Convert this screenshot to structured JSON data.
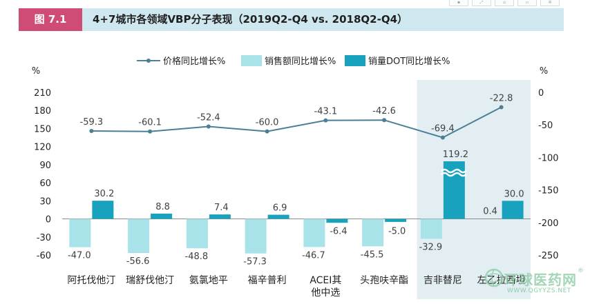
{
  "header": {
    "figure_label": "图 7.1",
    "title": "4+7城市各领域VBP分子表现（2019Q2-Q4 vs. 2018Q2-Q4）"
  },
  "colors": {
    "header_bg": "#cfe7ef",
    "label_bg": "#cf4d75",
    "bar_light": "#a8e3ea",
    "bar_dark": "#19a2bd",
    "line": "#4a7f95",
    "highlight": "#e3eef3",
    "axis_text": "#222222",
    "value_text": "#404040"
  },
  "chart_data": {
    "type": "bar",
    "title": "4+7城市各领域VBP分子表现（2019Q2-Q4 vs. 2018Q2-Q4）",
    "left_axis_unit": "%",
    "right_axis_unit": "%",
    "ylim_left": [
      -60,
      210
    ],
    "yticks_left": [
      "210",
      "180",
      "150",
      "120",
      "90",
      "60",
      "30",
      "0",
      "-30",
      "-60"
    ],
    "ylim_right": [
      -250,
      0
    ],
    "yticks_right": [
      "0",
      "-50",
      "-100",
      "-150",
      "-200",
      "-250"
    ],
    "categories": [
      "阿托伐他汀",
      "瑞舒伐他汀",
      "氨氯地平",
      "福辛普利",
      "ACEI其他中选",
      "头孢呋辛酯",
      "吉非替尼",
      "左乙拉西坦"
    ],
    "category_lines": [
      [
        "阿托伐他汀"
      ],
      [
        "瑞舒伐他汀"
      ],
      [
        "氨氯地平"
      ],
      [
        "福辛普利"
      ],
      [
        "ACEI其",
        "他中选"
      ],
      [
        "头孢呋辛酯"
      ],
      [
        "吉非替尼"
      ],
      [
        "左乙拉西坦"
      ]
    ],
    "highlight_categories": [
      "吉非替尼",
      "左乙拉西坦"
    ],
    "legend": [
      "价格同比增长%",
      "销售额同比增长%",
      "销量DOT同比增长%"
    ],
    "legend_position": "top-center",
    "series": [
      {
        "name": "价格同比增长%",
        "type": "line",
        "axis": "right",
        "values": [
          -59.3,
          -60.1,
          -52.4,
          -60.0,
          -43.1,
          -42.6,
          -69.4,
          -22.8
        ],
        "labels": [
          "-59.3",
          "-60.1",
          "-52.4",
          "-60.0",
          "-43.1",
          "-42.6",
          "-69.4",
          "-22.8"
        ]
      },
      {
        "name": "销售额同比增长%",
        "type": "bar",
        "axis": "left",
        "values": [
          -47.0,
          -56.6,
          -48.8,
          -57.3,
          -46.7,
          -45.5,
          -32.9,
          null
        ],
        "labels": [
          "-47.0",
          "-56.6",
          "-48.8",
          "-57.3",
          "-46.7",
          "-45.5",
          "-32.9",
          ""
        ]
      },
      {
        "name": "销量DOT同比增长%",
        "type": "bar",
        "axis": "left",
        "values": [
          30.2,
          8.8,
          7.4,
          6.9,
          -6.4,
          -5.0,
          119.2,
          30.0
        ],
        "labels": [
          "30.2",
          "8.8",
          "7.4",
          "6.9",
          "-6.4",
          "-5.0",
          "119.2",
          "30.0"
        ],
        "axis_break_on": "吉非替尼"
      }
    ],
    "extra_labels": [
      {
        "category": "左乙拉西坦",
        "text": "0.4"
      }
    ]
  },
  "watermark": {
    "name": "环球医药网",
    "url": "WWW.QGYYZS.NET",
    "mark": "®"
  }
}
